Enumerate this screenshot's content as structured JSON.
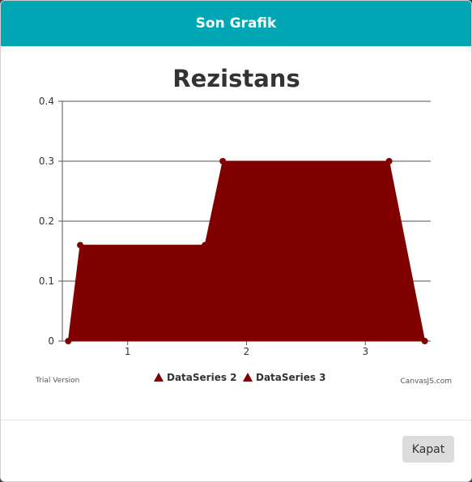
{
  "modal": {
    "title": "Son Grafik",
    "close_label": "Kapat"
  },
  "chart_footer": {
    "trial_text": "Trial Version",
    "credit_text": "CanvasJS.com"
  },
  "colors": {
    "header": "#00a6b4",
    "series": "#800000"
  },
  "chart_data": {
    "type": "area",
    "title": "Rezistans",
    "xlabel": "",
    "ylabel": "",
    "xlim": [
      0.45,
      3.55
    ],
    "ylim": [
      0,
      0.4
    ],
    "xticks": [
      1,
      2,
      3
    ],
    "yticks": [
      0,
      0.1,
      0.2,
      0.3,
      0.4
    ],
    "ytick_labels": [
      "0",
      "0.1",
      "0.2",
      "0.3",
      "0.4"
    ],
    "grid": true,
    "legend_position": "bottom",
    "series": [
      {
        "name": "DataSeries 2",
        "x": [
          0.5,
          0.6,
          1.65
        ],
        "y": [
          0,
          0.16,
          0.16
        ]
      },
      {
        "name": "DataSeries 3",
        "x": [
          1.8,
          3.2,
          3.5
        ],
        "y": [
          0.3,
          0.3,
          0
        ]
      }
    ]
  }
}
